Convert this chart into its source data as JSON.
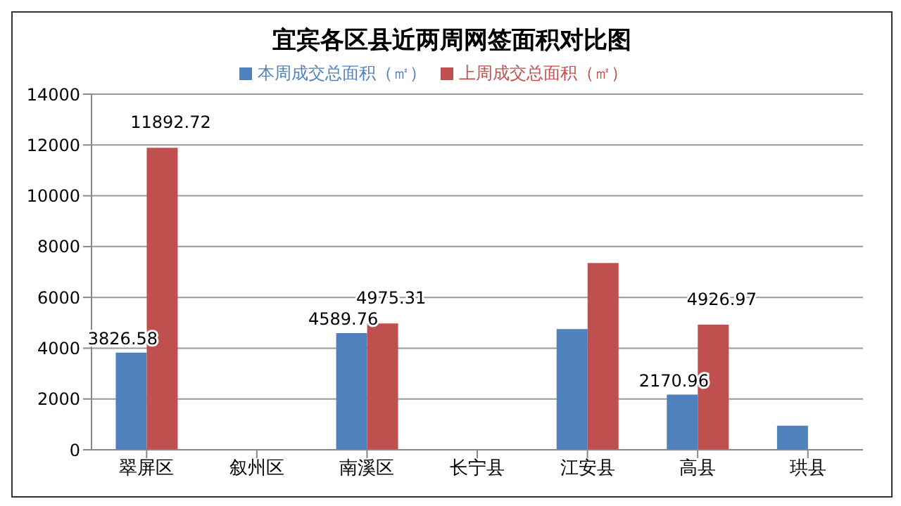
{
  "chart_data": {
    "type": "bar",
    "title": "宜宾各区县近两周网签面积对比图",
    "categories": [
      "翠屏区",
      "叙州区",
      "南溪区",
      "长宁县",
      "江安县",
      "高县",
      "珙县"
    ],
    "series": [
      {
        "name": "本周成交总面积（㎡）",
        "color": "#4f81bd",
        "values": [
          3826.58,
          null,
          4589.76,
          null,
          4750,
          2170.96,
          950
        ],
        "value_labels": [
          "3826.58",
          null,
          "4589.76",
          null,
          null,
          "2170.96",
          null
        ]
      },
      {
        "name": "上周成交总面积（㎡）",
        "color": "#c0504d",
        "values": [
          11892.72,
          null,
          4975.31,
          null,
          7350,
          4926.97,
          null
        ],
        "value_labels": [
          "11892.72",
          null,
          "4975.31",
          null,
          null,
          "4926.97",
          null
        ]
      }
    ],
    "ylim": [
      0,
      14000
    ],
    "yticks": [
      0,
      2000,
      4000,
      6000,
      8000,
      10000,
      12000,
      14000
    ],
    "grid": "y",
    "legend": "top"
  }
}
